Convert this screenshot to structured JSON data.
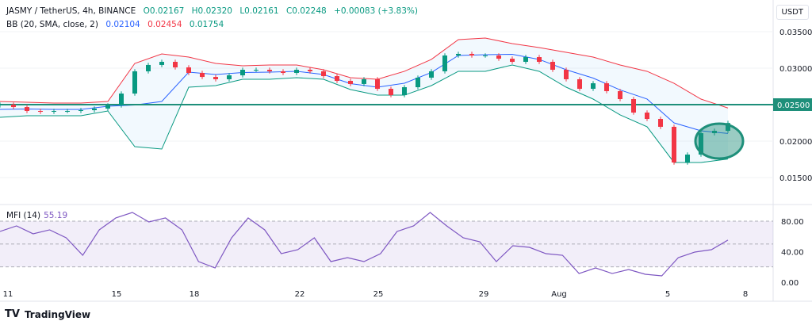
{
  "header": {
    "symbol": "JASMY / TetherUS, 4h, BINANCE",
    "open": "O0.02167",
    "high": "H0.02320",
    "low": "L0.02161",
    "close": "C0.02248",
    "change": "+0.00083 (+3.83%)"
  },
  "bb": {
    "label": "BB (20, SMA, close, 2)",
    "basis": "0.02104",
    "upper": "0.02454",
    "lower": "0.01754"
  },
  "currency": "USDT",
  "mfi": {
    "label": "MFI (14)",
    "value": "55.19"
  },
  "brand": "TradingView",
  "colors": {
    "up": "#089981",
    "down": "#f23645",
    "basis": "#2962ff",
    "upper": "#f23645",
    "lower": "#089981",
    "mfi": "#7e57c2",
    "level": "#1e8f7a"
  },
  "chart_data": [
    {
      "type": "candlestick",
      "price_axis": {
        "ticks": [
          "0.03500",
          "0.03000",
          "0.02500",
          "0.02000",
          "0.01500"
        ],
        "range": [
          0.0135,
          0.0365
        ]
      },
      "x_ticks": [
        "11",
        "15",
        "18",
        "22",
        "25",
        "29",
        "Aug",
        "5",
        "8"
      ],
      "horizontal_level": {
        "value": 0.025,
        "label": "0.02500"
      },
      "highlight": "circle around latest candles",
      "first_open": 0.0249,
      "closes": [
        0.025,
        0.02467,
        0.02413,
        0.02402,
        0.02413,
        0.02413,
        0.02424,
        0.02446,
        0.02489,
        0.02652,
        0.02957,
        0.03044,
        0.03087,
        0.03011,
        0.02935,
        0.0288,
        0.02848,
        0.02902,
        0.02978,
        0.02978,
        0.02957,
        0.02935,
        0.02978,
        0.02957,
        0.02891,
        0.02826,
        0.02783,
        0.02848,
        0.02717,
        0.0263,
        0.02739,
        0.0287,
        0.02957,
        0.03174,
        0.03196,
        0.03174,
        0.03174,
        0.0313,
        0.03087,
        0.03152,
        0.03087,
        0.02978,
        0.02848,
        0.02717,
        0.02793,
        0.02685,
        0.02576,
        0.02391,
        0.02304,
        0.02196,
        0.01707,
        0.01815,
        0.02109,
        0.02141,
        0.02248
      ],
      "bb_upper": [
        0.02543,
        0.02533,
        0.02522,
        0.02522,
        0.02543,
        0.03065,
        0.03196,
        0.03152,
        0.03065,
        0.03033,
        0.03044,
        0.03044,
        0.02978,
        0.0287,
        0.02848,
        0.02957,
        0.0312,
        0.03391,
        0.03413,
        0.03337,
        0.03283,
        0.03217,
        0.03152,
        0.03044,
        0.02957,
        0.02793,
        0.02576,
        0.02454
      ],
      "bb_lower": [
        0.02326,
        0.02348,
        0.02348,
        0.02348,
        0.02413,
        0.01924,
        0.01891,
        0.02739,
        0.02761,
        0.02848,
        0.02848,
        0.0287,
        0.02848,
        0.02707,
        0.0263,
        0.0263,
        0.02761,
        0.02957,
        0.02957,
        0.03044,
        0.02957,
        0.02739,
        0.02576,
        0.02359,
        0.02196,
        0.01707,
        0.01707,
        0.01754
      ]
    },
    {
      "type": "line",
      "name": "MFI (14)",
      "y_ticks": [
        "80.00",
        "40.00",
        "0.00"
      ],
      "range": [
        0,
        80
      ],
      "levels": [
        80,
        50,
        20
      ],
      "values": [
        66.5,
        73.8,
        63.4,
        68.6,
        58.2,
        35.3,
        68.6,
        84.2,
        91.4,
        79,
        84.2,
        68.6,
        27,
        18.7,
        58.2,
        84.2,
        68.6,
        37.4,
        42.6,
        58.2,
        27,
        32.2,
        27,
        37.4,
        66.5,
        73.8,
        91.4,
        73.8,
        58.2,
        53,
        27,
        47.8,
        45.7,
        37.4,
        35.3,
        11.4,
        18.7,
        11.4,
        16.6,
        10.4,
        8.3,
        32.2,
        39.5,
        42.6,
        55.19
      ]
    }
  ]
}
